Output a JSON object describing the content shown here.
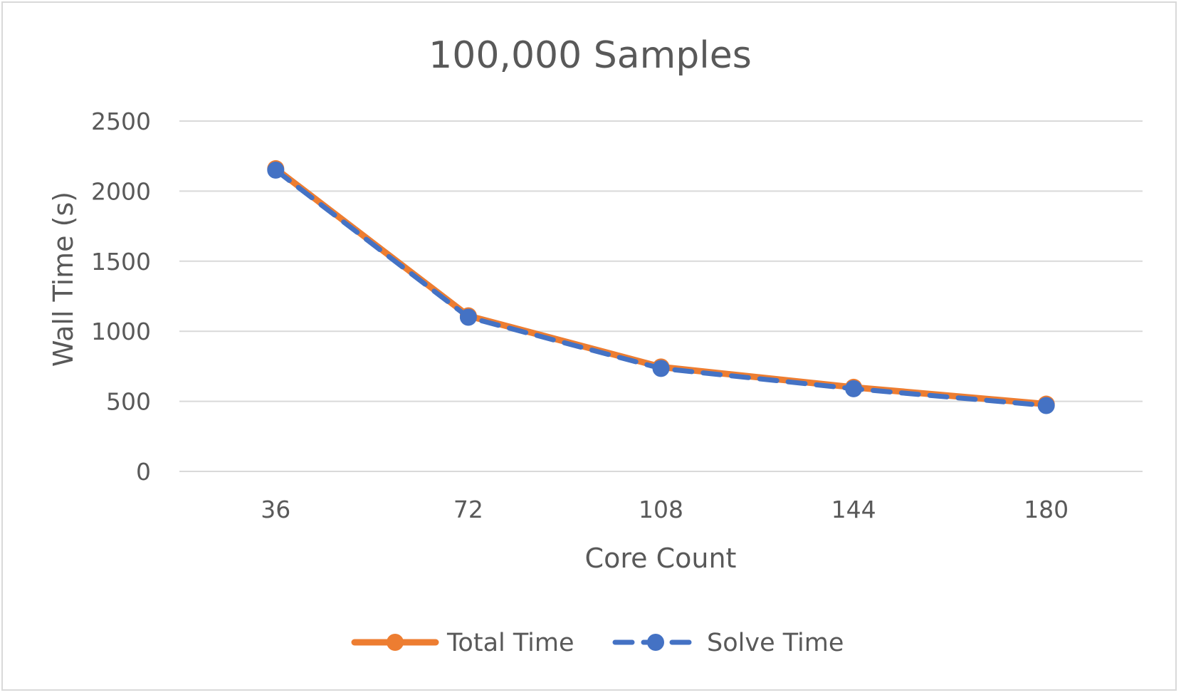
{
  "chart_data": {
    "type": "line",
    "title": "100,000 Samples",
    "xlabel": "Core Count",
    "ylabel": "Wall Time (s)",
    "categories": [
      "36",
      "72",
      "108",
      "144",
      "180"
    ],
    "ylim": [
      0,
      2500
    ],
    "yticks": [
      0,
      500,
      1000,
      1500,
      2000,
      2500
    ],
    "grid": true,
    "legend": "bottom",
    "series": [
      {
        "name": "Total Time",
        "values": [
          2160,
          1110,
          745,
          600,
          480
        ],
        "color": "#ed7d31",
        "dash": "solid"
      },
      {
        "name": "Solve Time",
        "values": [
          2150,
          1100,
          735,
          590,
          470
        ],
        "color": "#4472c4",
        "dash": "dashed"
      }
    ]
  }
}
